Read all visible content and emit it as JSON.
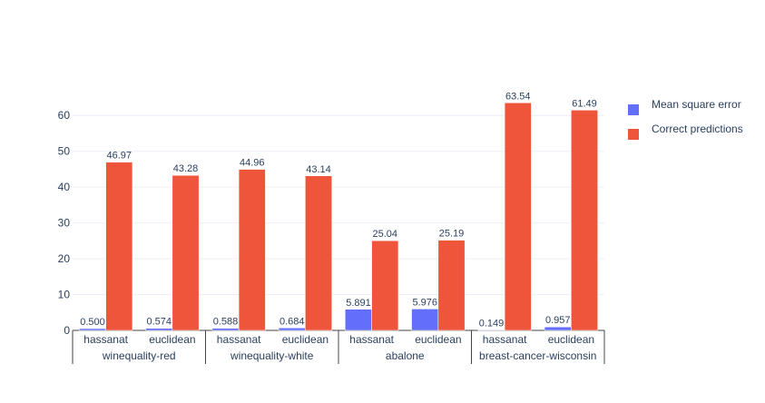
{
  "chart_data": {
    "type": "bar",
    "groups": [
      {
        "name": "winequality-red",
        "categories": [
          "hassanat",
          "euclidean"
        ]
      },
      {
        "name": "winequality-white",
        "categories": [
          "hassanat",
          "euclidean"
        ]
      },
      {
        "name": "abalone",
        "categories": [
          "hassanat",
          "euclidean"
        ]
      },
      {
        "name": "breast-cancer-wisconsin",
        "categories": [
          "hassanat",
          "euclidean"
        ]
      }
    ],
    "series": [
      {
        "name": "Mean square error",
        "color": "#636efa",
        "values": [
          0.5,
          0.574,
          0.588,
          0.684,
          5.891,
          5.976,
          0.149,
          0.957
        ],
        "labels": [
          "0.500",
          "0.574",
          "0.588",
          "0.684",
          "5.891",
          "5.976",
          "0.149",
          "0.957"
        ]
      },
      {
        "name": "Correct predictions",
        "color": "#ef553b",
        "values": [
          46.97,
          43.28,
          44.96,
          43.14,
          25.04,
          25.19,
          63.54,
          61.49
        ],
        "labels": [
          "46.97",
          "43.28",
          "44.96",
          "43.14",
          "25.04",
          "25.19",
          "63.54",
          "61.49"
        ]
      }
    ],
    "yticks": [
      0,
      10,
      20,
      30,
      40,
      50,
      60
    ],
    "ylim": [
      0,
      66.9
    ],
    "grid": true,
    "legend": "top-right"
  }
}
